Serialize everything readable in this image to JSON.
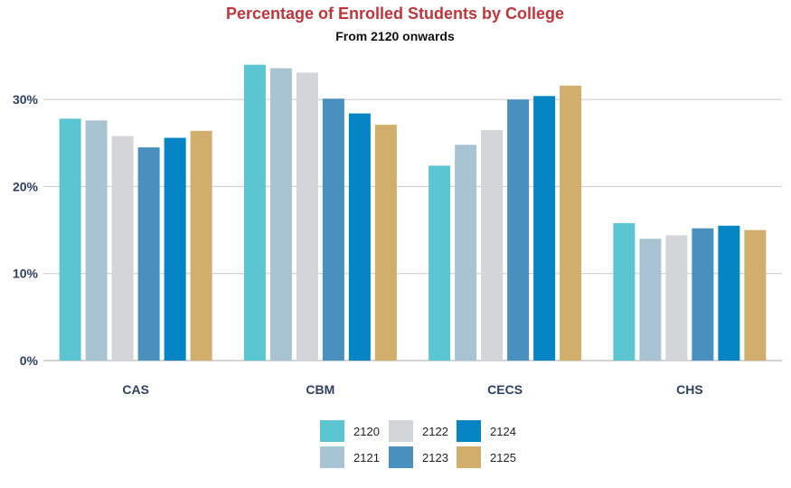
{
  "chart_data": {
    "type": "bar",
    "title": "Percentage of Enrolled Students by College",
    "subtitle": "From 2120 onwards",
    "categories": [
      "CAS",
      "CBM",
      "CECS",
      "CHS"
    ],
    "series": [
      {
        "name": "2120",
        "color": "#5bc5d1",
        "values": [
          27.8,
          34.0,
          22.4,
          15.8
        ]
      },
      {
        "name": "2121",
        "color": "#a8c4d2",
        "values": [
          27.6,
          33.6,
          24.8,
          14.0
        ]
      },
      {
        "name": "2122",
        "color": "#d3d5d8",
        "values": [
          25.8,
          33.1,
          26.5,
          14.4
        ]
      },
      {
        "name": "2123",
        "color": "#4a90be",
        "values": [
          24.5,
          30.1,
          30.0,
          15.2
        ]
      },
      {
        "name": "2124",
        "color": "#0585c4",
        "values": [
          25.6,
          28.4,
          30.4,
          15.5
        ]
      },
      {
        "name": "2125",
        "color": "#d1ae6c",
        "values": [
          26.4,
          27.1,
          31.6,
          15.0
        ]
      }
    ],
    "ylim": [
      0,
      35
    ],
    "yticks": [
      0,
      10,
      20,
      30
    ],
    "ytick_labels": [
      "0%",
      "10%",
      "20%",
      "30%"
    ],
    "grid": true,
    "legend_position": "bottom-center",
    "xlabel": "",
    "ylabel": ""
  }
}
